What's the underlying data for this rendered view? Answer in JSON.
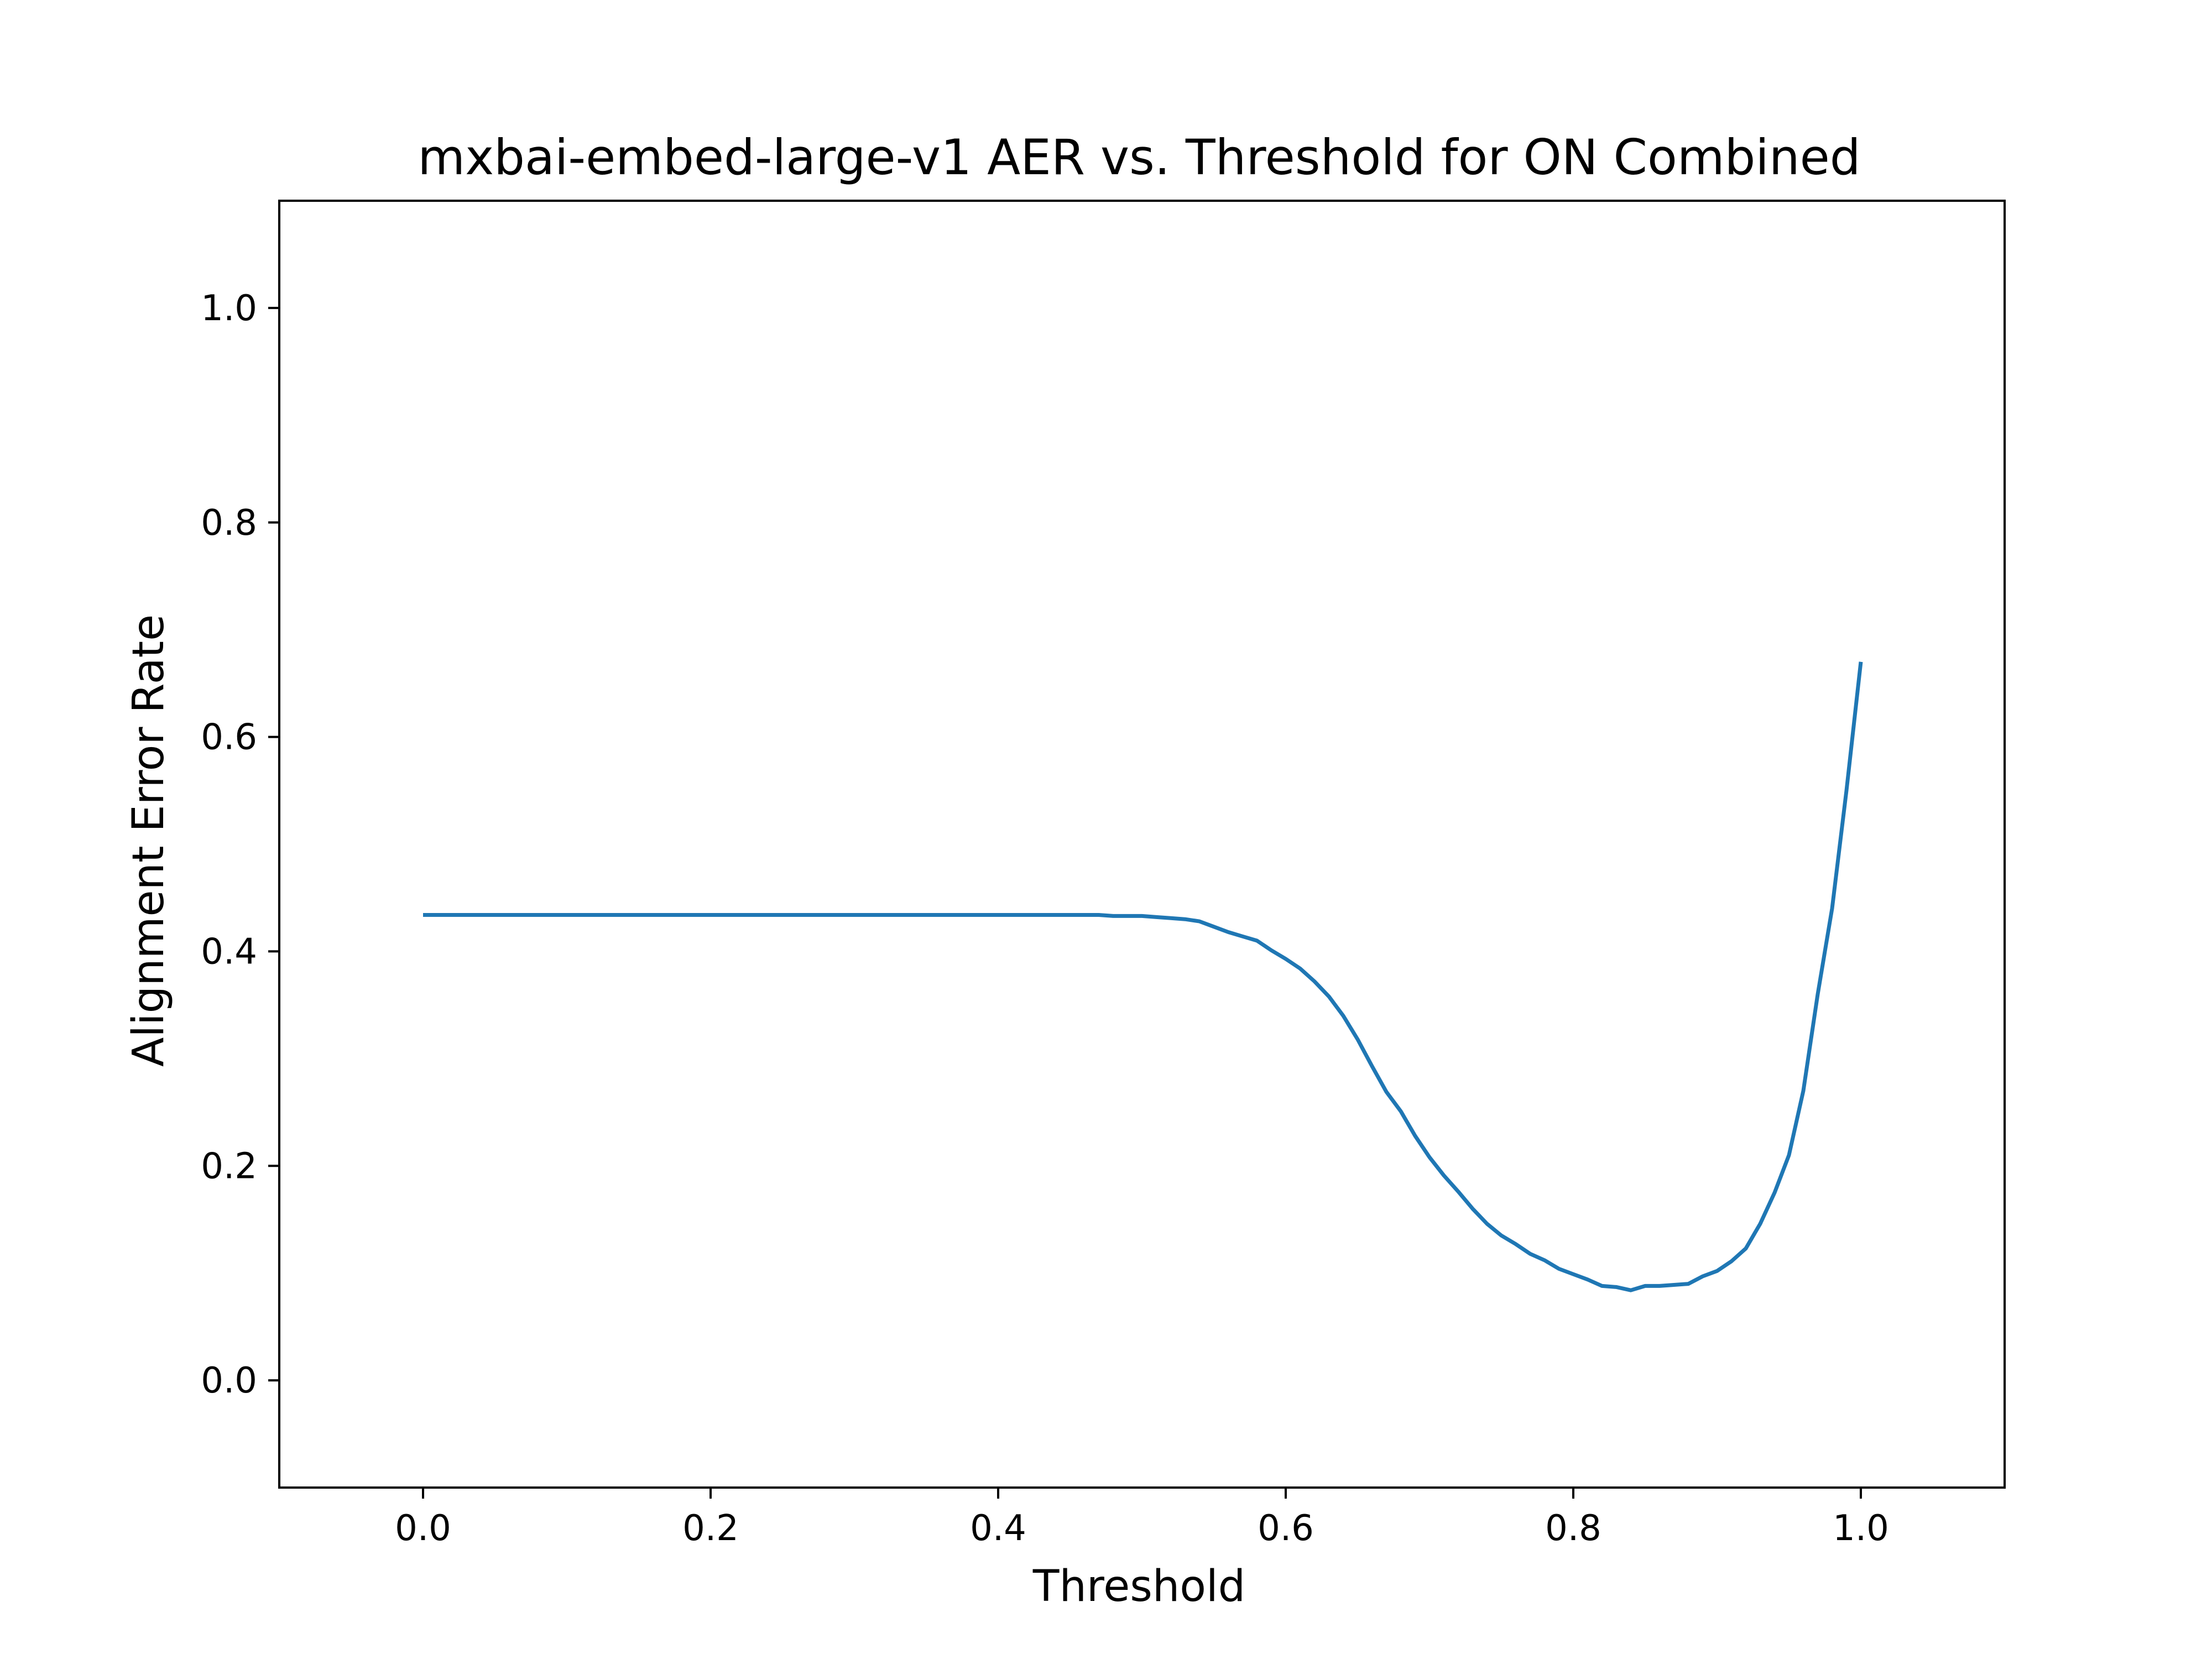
{
  "chart_data": {
    "type": "line",
    "title": "mxbai-embed-large-v1 AER vs. Threshold for ON Combined",
    "xlabel": "Threshold",
    "ylabel": "Alignment Error Rate",
    "xlim": [
      -0.1,
      1.1
    ],
    "ylim": [
      -0.1,
      1.1
    ],
    "xticks": [
      0.0,
      0.2,
      0.4,
      0.6,
      0.8,
      1.0
    ],
    "xtick_labels": [
      "0.0",
      "0.2",
      "0.4",
      "0.6",
      "0.8",
      "1.0"
    ],
    "yticks": [
      0.0,
      0.2,
      0.4,
      0.6,
      0.8,
      1.0
    ],
    "ytick_labels": [
      "0.0",
      "0.2",
      "0.4",
      "0.6",
      "0.8",
      "1.0"
    ],
    "grid": false,
    "legend": false,
    "series": [
      {
        "color": "#1f77b4",
        "x": [
          0.0,
          0.05,
          0.1,
          0.15,
          0.2,
          0.25,
          0.3,
          0.35,
          0.4,
          0.45,
          0.47,
          0.48,
          0.5,
          0.51,
          0.52,
          0.53,
          0.54,
          0.55,
          0.56,
          0.57,
          0.58,
          0.59,
          0.6,
          0.61,
          0.62,
          0.63,
          0.64,
          0.65,
          0.66,
          0.67,
          0.68,
          0.69,
          0.7,
          0.71,
          0.72,
          0.73,
          0.74,
          0.75,
          0.76,
          0.77,
          0.78,
          0.79,
          0.8,
          0.81,
          0.82,
          0.83,
          0.84,
          0.85,
          0.86,
          0.87,
          0.88,
          0.89,
          0.9,
          0.91,
          0.92,
          0.93,
          0.94,
          0.95,
          0.96,
          0.97,
          0.98,
          0.99,
          1.0
        ],
        "y": [
          0.434,
          0.434,
          0.434,
          0.434,
          0.434,
          0.434,
          0.434,
          0.434,
          0.434,
          0.434,
          0.434,
          0.433,
          0.433,
          0.432,
          0.431,
          0.43,
          0.428,
          0.423,
          0.418,
          0.414,
          0.41,
          0.401,
          0.393,
          0.384,
          0.372,
          0.358,
          0.34,
          0.318,
          0.293,
          0.269,
          0.251,
          0.228,
          0.208,
          0.191,
          0.176,
          0.16,
          0.146,
          0.135,
          0.127,
          0.118,
          0.112,
          0.104,
          0.099,
          0.094,
          0.088,
          0.087,
          0.084,
          0.088,
          0.088,
          0.089,
          0.09,
          0.097,
          0.102,
          0.111,
          0.123,
          0.146,
          0.175,
          0.21,
          0.27,
          0.36,
          0.44,
          0.55,
          0.67
        ]
      }
    ]
  }
}
